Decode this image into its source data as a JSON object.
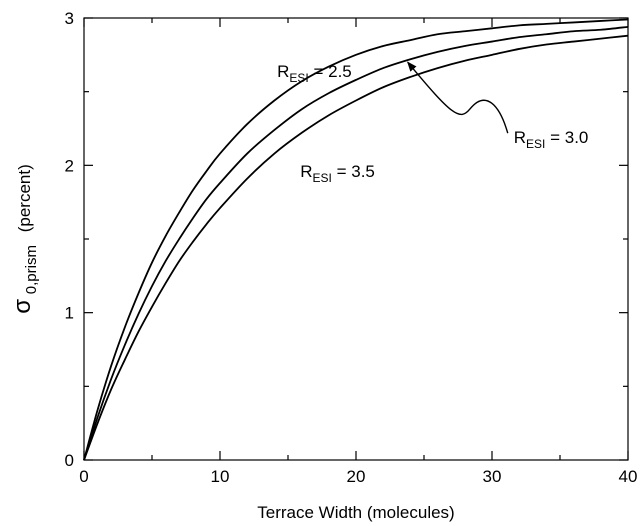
{
  "chart_data": {
    "type": "line",
    "title": "",
    "xlabel": "Terrace Width (molecules)",
    "ylabel": {
      "symbol": "σ",
      "subscript": "0,prism",
      "suffix": "(percent)"
    },
    "xlim": [
      0,
      40
    ],
    "ylim": [
      0,
      3
    ],
    "xticks": [
      "0",
      "10",
      "20",
      "30",
      "40"
    ],
    "yticks": [
      "0",
      "1",
      "2",
      "3"
    ],
    "grid": false,
    "legend": "none",
    "x": [
      0,
      1,
      2,
      3,
      4,
      5,
      6,
      7,
      8,
      9,
      10,
      12,
      14,
      16,
      18,
      20,
      22,
      24,
      26,
      28,
      30,
      32,
      34,
      36,
      38,
      40
    ],
    "series": [
      {
        "label_prefix": "R",
        "label_sub": "ESI",
        "label_value": " = 2.5",
        "values": [
          0,
          0.34,
          0.64,
          0.9,
          1.13,
          1.34,
          1.52,
          1.68,
          1.83,
          1.96,
          2.08,
          2.28,
          2.44,
          2.57,
          2.67,
          2.75,
          2.81,
          2.85,
          2.89,
          2.91,
          2.93,
          2.95,
          2.96,
          2.97,
          2.98,
          2.99
        ]
      },
      {
        "label_prefix": "R",
        "label_sub": "ESI",
        "label_value": " = 3.0",
        "values": [
          0,
          0.29,
          0.55,
          0.78,
          0.99,
          1.18,
          1.35,
          1.5,
          1.64,
          1.77,
          1.88,
          2.08,
          2.24,
          2.38,
          2.49,
          2.58,
          2.66,
          2.72,
          2.77,
          2.81,
          2.84,
          2.87,
          2.89,
          2.91,
          2.92,
          2.94
        ]
      },
      {
        "label_prefix": "R",
        "label_sub": "ESI",
        "label_value": " = 3.5",
        "values": [
          0,
          0.25,
          0.48,
          0.68,
          0.87,
          1.04,
          1.2,
          1.35,
          1.48,
          1.6,
          1.71,
          1.91,
          2.08,
          2.22,
          2.34,
          2.44,
          2.53,
          2.6,
          2.66,
          2.71,
          2.75,
          2.79,
          2.82,
          2.84,
          2.86,
          2.88
        ]
      }
    ],
    "annotations": [
      {
        "series": 0,
        "x": 14.2,
        "y": 2.6,
        "anchor": "start"
      },
      {
        "series": 1,
        "x": 31.6,
        "y": 2.15,
        "anchor": "start",
        "arrow_to": {
          "x": 23.8,
          "y": 2.7
        }
      },
      {
        "series": 2,
        "x": 15.9,
        "y": 1.92,
        "anchor": "start"
      }
    ]
  }
}
